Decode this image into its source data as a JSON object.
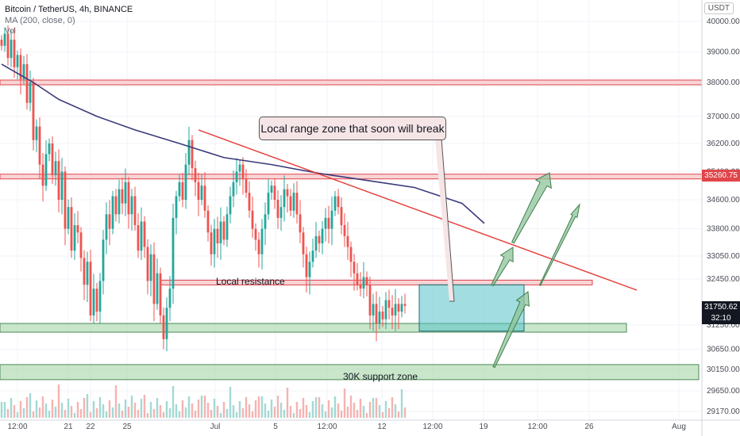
{
  "header": {
    "symbol_line": "Bitcoin / TetherUS, 4h, BINANCE",
    "ma_line": "MA (200, close, 0)",
    "vol_label": "Vol"
  },
  "currency_button": "USDT",
  "price_labels": {
    "resistance_level": "35260.75",
    "last_price": "31750.62",
    "countdown": "32:10"
  },
  "annotations": {
    "callout": "Local range zone that soon will break",
    "local_resistance": "Local resistance",
    "support_zone": "30K support zone"
  },
  "colors": {
    "up": "#26a69a",
    "down": "#ef5350",
    "ma": "#3a3a7a",
    "level_line": "#e0454a",
    "zone_fill": "#a5d6a7",
    "box_fill": "#56c2c9",
    "arrow_fill": "#8fc49a"
  },
  "chart_data": {
    "type": "candlestick",
    "symbol": "BTCUSDT",
    "interval": "4h",
    "y_axis_ticks": [
      "40000.00",
      "39000.00",
      "38000.00",
      "37000.00",
      "36200.00",
      "35400.00",
      "34600.00",
      "33800.00",
      "33050.00",
      "32450.00",
      "31250.00",
      "30650.00",
      "30150.00",
      "29650.00",
      "29170.00"
    ],
    "x_axis_ticks": [
      "12:00",
      "21",
      "22",
      "25",
      "Jul",
      "5",
      "12:00",
      "12",
      "12:00",
      "19",
      "12:00",
      "26",
      "Aug"
    ],
    "ylim": [
      28900,
      40300
    ],
    "horizontal_levels": [
      38000,
      35260.75
    ],
    "last_price": 31750.62,
    "ma_period": 200,
    "ma_points": [
      {
        "t": 0,
        "v": 38600
      },
      {
        "t": 10,
        "v": 38000
      },
      {
        "t": 18,
        "v": 37500
      },
      {
        "t": 30,
        "v": 37000
      },
      {
        "t": 42,
        "v": 36600
      },
      {
        "t": 56,
        "v": 36200
      },
      {
        "t": 70,
        "v": 35800
      },
      {
        "t": 85,
        "v": 35600
      },
      {
        "t": 100,
        "v": 35350
      },
      {
        "t": 115,
        "v": 35150
      },
      {
        "t": 130,
        "v": 34950
      },
      {
        "t": 145,
        "v": 34500
      },
      {
        "t": 152,
        "v": 33950
      }
    ],
    "candle_closes": [
      39200,
      39600,
      38800,
      39400,
      38500,
      38900,
      38100,
      38600,
      37400,
      38000,
      36300,
      36700,
      35600,
      35000,
      35900,
      36200,
      35300,
      35700,
      34600,
      35400,
      33800,
      34400,
      33200,
      33900,
      33700,
      33000,
      32300,
      32900,
      31500,
      32200,
      31600,
      32400,
      33500,
      34200,
      33800,
      34700,
      34200,
      34900,
      34500,
      35100,
      34200,
      34700,
      33900,
      33200,
      34000,
      33300,
      32400,
      33100,
      31800,
      32600,
      31500,
      30900,
      31700,
      32200,
      34100,
      34700,
      35100,
      34600,
      35600,
      36300,
      35500,
      35100,
      34600,
      35000,
      34300,
      33700,
      33100,
      33800,
      33400,
      34000,
      33500,
      34200,
      34700,
      35100,
      35400,
      35600,
      35200,
      34800,
      34300,
      33800,
      33500,
      33100,
      33800,
      34200,
      34800,
      35000,
      34600,
      34100,
      34400,
      34900,
      34700,
      34300,
      34800,
      34200,
      33700,
      33100,
      32500,
      32900,
      33200,
      33600,
      33400,
      33800,
      34100,
      33800,
      34300,
      34700,
      34400,
      33900,
      33600,
      33300,
      32900,
      32600,
      32300,
      32200,
      32500,
      32300,
      31500,
      31800,
      31300,
      31600,
      31400,
      31900,
      31700,
      31500,
      31800,
      31600,
      31800,
      31750
    ],
    "trendline": {
      "from": {
        "t": 62,
        "v": 36600
      },
      "to": {
        "t": 198,
        "v": 31900
      }
    },
    "local_resistance_zone": [
      32300,
      32400
    ],
    "range_box": [
      31100,
      32300
    ],
    "support_zones": [
      [
        31050,
        31250
      ],
      [
        29950,
        30250
      ]
    ]
  }
}
